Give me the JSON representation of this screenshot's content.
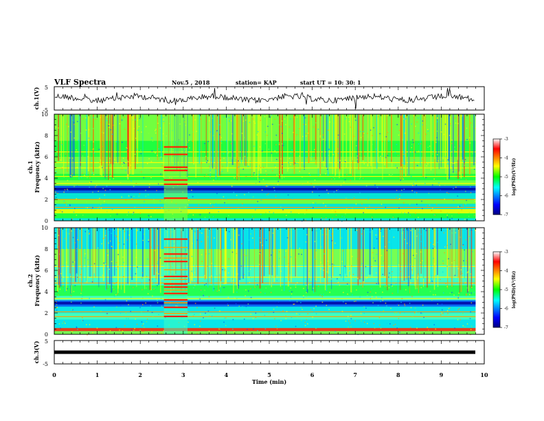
{
  "header": {
    "title": "VLF Spectra",
    "date": "Nov.5  , 2018",
    "station": "station= KAP",
    "start": "start  UT  =   10: 30: 1"
  },
  "chart_data": [
    {
      "type": "line",
      "panel": "ch1-waveform",
      "ylabel": "ch.1(V)",
      "ylim": [
        -5,
        5
      ],
      "yticks": [
        "5",
        "-5"
      ],
      "xlim": [
        0,
        10
      ]
    },
    {
      "type": "heatmap",
      "panel": "ch1-spectrogram",
      "ylabel_top": "ch.1",
      "ylabel": "Frequency (kHz)",
      "ylim": [
        0,
        10
      ],
      "yticks": [
        "0",
        "2",
        "4",
        "6",
        "8",
        "10"
      ],
      "xlim": [
        0,
        10
      ],
      "colorbar": {
        "label": "log(PSD)(V²/Hz)",
        "range": [
          -7,
          -3
        ],
        "ticks": [
          "-3",
          "-4",
          "-5",
          "-6",
          "-7"
        ]
      }
    },
    {
      "type": "heatmap",
      "panel": "ch2-spectrogram",
      "ylabel_top": "ch.2",
      "ylabel": "Frequency (kHz)",
      "ylim": [
        0,
        10
      ],
      "yticks": [
        "0",
        "2",
        "4",
        "6",
        "8",
        "10"
      ],
      "xlim": [
        0,
        10
      ],
      "colorbar": {
        "label": "log(PSD)(V²/Hz)",
        "range": [
          -7,
          -3
        ],
        "ticks": [
          "-3",
          "-4",
          "-5",
          "-6",
          "-7"
        ]
      }
    },
    {
      "type": "line",
      "panel": "ch3-waveform",
      "ylabel": "ch.3(V)",
      "ylim": [
        -5,
        5
      ],
      "yticks": [
        "5",
        "-5"
      ],
      "xlim": [
        0,
        10
      ],
      "xlabel": "Time (min)",
      "xticks": [
        "0",
        "1",
        "2",
        "3",
        "4",
        "5",
        "6",
        "7",
        "8",
        "9",
        "10"
      ]
    }
  ]
}
